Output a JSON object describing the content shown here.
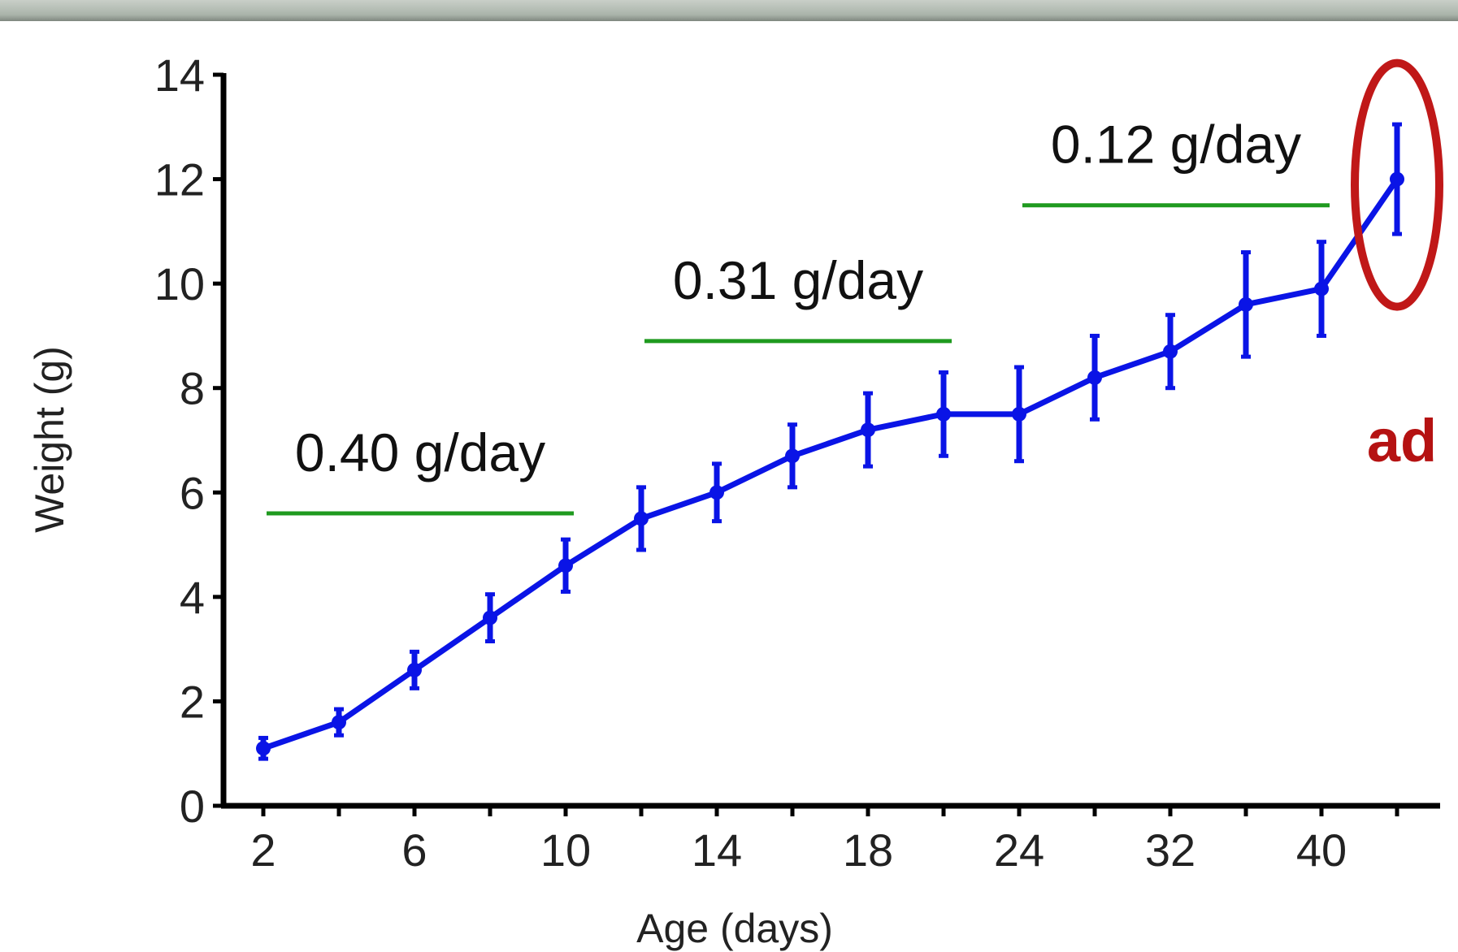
{
  "colors": {
    "series": "#0a14e6",
    "rate_lines": "#1f9a1f",
    "highlight": "#c01818",
    "axis": "#000000"
  },
  "chart_data": {
    "type": "line",
    "xlabel": "Age (days)",
    "ylabel": "Weight (g)",
    "ylim": [
      0,
      14
    ],
    "y_ticks": [
      0,
      2,
      4,
      6,
      8,
      10,
      12,
      14
    ],
    "categories": [
      "2",
      "4",
      "6",
      "8",
      "10",
      "12",
      "14",
      "16",
      "18",
      "21",
      "24",
      "28",
      "32",
      "36",
      "40",
      "ad"
    ],
    "x_tick_labels": [
      "2",
      "6",
      "10",
      "14",
      "18",
      "24",
      "32",
      "40"
    ],
    "series": [
      {
        "values": [
          1.1,
          1.6,
          2.6,
          3.6,
          4.6,
          5.5,
          6.0,
          6.7,
          7.2,
          7.5,
          7.5,
          8.2,
          8.7,
          9.6,
          9.9,
          12.0
        ],
        "errors": [
          0.2,
          0.25,
          0.35,
          0.45,
          0.5,
          0.6,
          0.55,
          0.6,
          0.7,
          0.8,
          0.9,
          0.8,
          0.7,
          1.0,
          0.9,
          1.05
        ]
      }
    ],
    "annotations": [
      {
        "text": "0.40 g/day",
        "from_category": "2",
        "to_category": "10",
        "y": 5.6
      },
      {
        "text": "0.31 g/day",
        "from_category": "12",
        "to_category": "21",
        "y": 8.9
      },
      {
        "text": "0.12 g/day",
        "from_category": "24",
        "to_category": "40",
        "y": 11.5
      }
    ],
    "highlight": {
      "category": "ad",
      "label": "ad"
    },
    "grid": false,
    "legend": "none"
  }
}
